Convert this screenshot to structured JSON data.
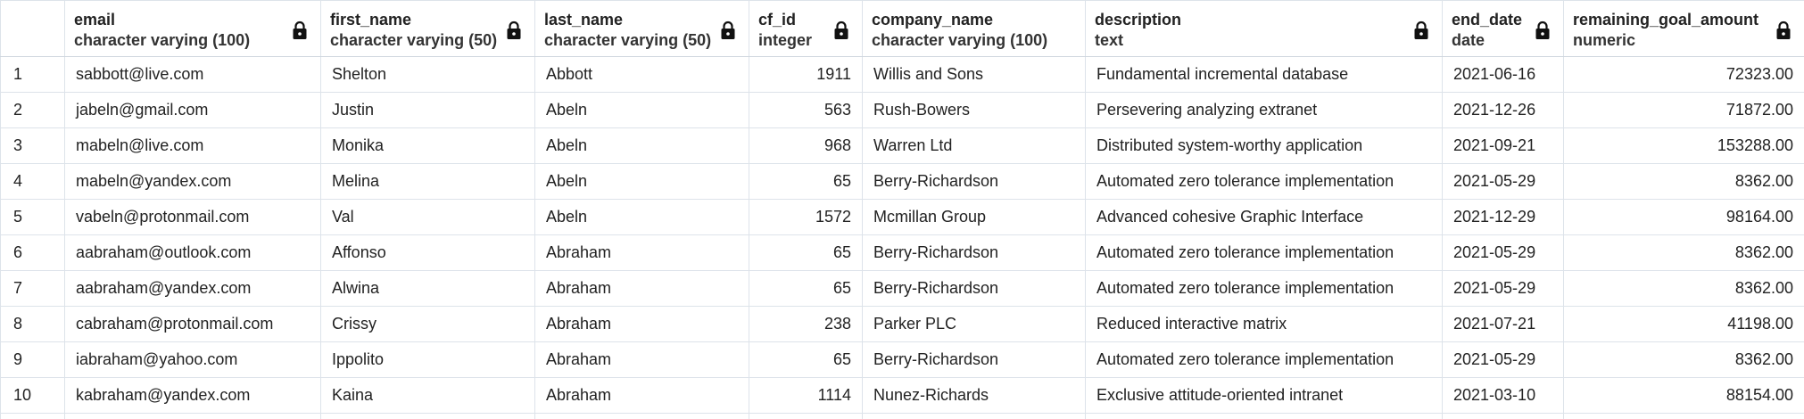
{
  "columns": [
    {
      "name": "email",
      "type": "character varying (100)"
    },
    {
      "name": "first_name",
      "type": "character varying (50)"
    },
    {
      "name": "last_name",
      "type": "character varying (50)"
    },
    {
      "name": "cf_id",
      "type": "integer"
    },
    {
      "name": "company_name",
      "type": "character varying (100)"
    },
    {
      "name": "description",
      "type": "text"
    },
    {
      "name": "end_date",
      "type": "date"
    },
    {
      "name": "remaining_goal_amount",
      "type": "numeric"
    }
  ],
  "rows": [
    {
      "rn": "1",
      "email": "sabbott@live.com",
      "first_name": "Shelton",
      "last_name": "Abbott",
      "cf_id": "1911",
      "company_name": "Willis and Sons",
      "description": "Fundamental incremental database",
      "end_date": "2021-06-16",
      "remaining_goal_amount": "72323.00"
    },
    {
      "rn": "2",
      "email": "jabeln@gmail.com",
      "first_name": "Justin",
      "last_name": "Abeln",
      "cf_id": "563",
      "company_name": "Rush-Bowers",
      "description": "Persevering analyzing extranet",
      "end_date": "2021-12-26",
      "remaining_goal_amount": "71872.00"
    },
    {
      "rn": "3",
      "email": "mabeln@live.com",
      "first_name": "Monika",
      "last_name": "Abeln",
      "cf_id": "968",
      "company_name": "Warren Ltd",
      "description": "Distributed system-worthy application",
      "end_date": "2021-09-21",
      "remaining_goal_amount": "153288.00"
    },
    {
      "rn": "4",
      "email": "mabeln@yandex.com",
      "first_name": "Melina",
      "last_name": "Abeln",
      "cf_id": "65",
      "company_name": "Berry-Richardson",
      "description": "Automated zero tolerance implementation",
      "end_date": "2021-05-29",
      "remaining_goal_amount": "8362.00"
    },
    {
      "rn": "5",
      "email": "vabeln@protonmail.com",
      "first_name": "Val",
      "last_name": "Abeln",
      "cf_id": "1572",
      "company_name": "Mcmillan Group",
      "description": "Advanced cohesive Graphic Interface",
      "end_date": "2021-12-29",
      "remaining_goal_amount": "98164.00"
    },
    {
      "rn": "6",
      "email": "aabraham@outlook.com",
      "first_name": "Affonso",
      "last_name": "Abraham",
      "cf_id": "65",
      "company_name": "Berry-Richardson",
      "description": "Automated zero tolerance implementation",
      "end_date": "2021-05-29",
      "remaining_goal_amount": "8362.00"
    },
    {
      "rn": "7",
      "email": "aabraham@yandex.com",
      "first_name": "Alwina",
      "last_name": "Abraham",
      "cf_id": "65",
      "company_name": "Berry-Richardson",
      "description": "Automated zero tolerance implementation",
      "end_date": "2021-05-29",
      "remaining_goal_amount": "8362.00"
    },
    {
      "rn": "8",
      "email": "cabraham@protonmail.com",
      "first_name": "Crissy",
      "last_name": "Abraham",
      "cf_id": "238",
      "company_name": "Parker PLC",
      "description": "Reduced interactive matrix",
      "end_date": "2021-07-21",
      "remaining_goal_amount": "41198.00"
    },
    {
      "rn": "9",
      "email": "iabraham@yahoo.com",
      "first_name": "Ippolito",
      "last_name": "Abraham",
      "cf_id": "65",
      "company_name": "Berry-Richardson",
      "description": "Automated zero tolerance implementation",
      "end_date": "2021-05-29",
      "remaining_goal_amount": "8362.00"
    },
    {
      "rn": "10",
      "email": "kabraham@yandex.com",
      "first_name": "Kaina",
      "last_name": "Abraham",
      "cf_id": "1114",
      "company_name": "Nunez-Richards",
      "description": "Exclusive attitude-oriented intranet",
      "end_date": "2021-03-10",
      "remaining_goal_amount": "88154.00"
    }
  ],
  "icons": {
    "column_lock": "lock-icon"
  },
  "colors": {
    "grid_border": "#dde3ea",
    "header_bg": "#ffffff",
    "text": "#222222"
  }
}
